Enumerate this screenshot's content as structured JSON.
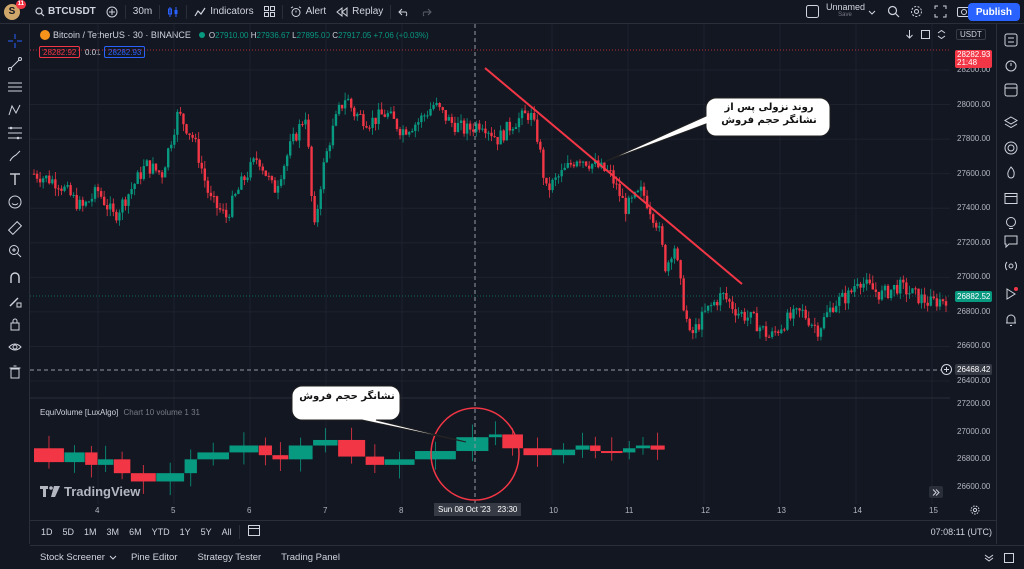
{
  "topbar": {
    "avatar_letter": "S",
    "avatar_badge": "11",
    "symbol": "BTCUSDT",
    "interval": "30m",
    "indicators_label": "Indicators",
    "alert_label": "Alert",
    "replay_label": "Replay",
    "layout_name": "Unnamed",
    "layout_status": "Save",
    "publish_label": "Publish"
  },
  "legend": {
    "title": "Bitcoin / TetherUS · 30 · BINANCE",
    "o_label": "O",
    "o_value": "27910.00",
    "h_label": "H",
    "h_value": "27936.67",
    "l_label": "L",
    "l_value": "27895.00",
    "c_label": "C",
    "c_value": "27917.05 +7.06 (+0.03%)",
    "sell_price": "28282.92",
    "spread": "0.01",
    "buy_price": "28282.93",
    "currency": "USDT"
  },
  "indicator": {
    "name": "EquiVolume [LuxAlgo]",
    "params": "Chart 10 volume 1 31"
  },
  "price_axis": {
    "labels": [
      "28200.00",
      "28000.00",
      "27800.00",
      "27600.00",
      "27400.00",
      "27200.00",
      "27000.00",
      "26800.00",
      "26600.00",
      "26400.00"
    ],
    "current_price": "28282.93",
    "countdown": "21:48",
    "last_price": "26882.52",
    "crosshair_price": "26468.42"
  },
  "sub_axis": {
    "labels": [
      "27200.00",
      "27000.00",
      "26800.00",
      "26600.00"
    ]
  },
  "time_axis": {
    "labels": [
      "4",
      "5",
      "6",
      "7",
      "8",
      "10",
      "11",
      "12",
      "13",
      "14",
      "15"
    ],
    "crosshair_label": "Sun 08 Oct '23   23:30"
  },
  "bottom": {
    "timeframes": [
      "1D",
      "5D",
      "1M",
      "3M",
      "6M",
      "YTD",
      "1Y",
      "5Y",
      "All"
    ],
    "clock": "07:08:11 (UTC)"
  },
  "panels": {
    "tabs": [
      "Stock Screener",
      "Pine Editor",
      "Strategy Tester",
      "Trading Panel"
    ]
  },
  "watermark": "TradingView",
  "annotations": {
    "callout_top": "روند نزولی پس از نشانگر حجم فروش",
    "callout_bottom": "نشانگر حجم فروش"
  },
  "colors": {
    "up": "#089981",
    "down": "#f23645",
    "accent": "#2962ff",
    "bg": "#131722"
  },
  "chart_data": {
    "type": "candlestick",
    "symbol": "BTCUSDT",
    "ylim": [
      26400,
      28260
    ],
    "x_ticks": [
      "4",
      "5",
      "6",
      "7",
      "8",
      "10",
      "11",
      "12",
      "13",
      "14",
      "15"
    ],
    "trend_path": [
      [
        0,
        27600
      ],
      [
        0.03,
        27550
      ],
      [
        0.06,
        27400
      ],
      [
        0.08,
        27500
      ],
      [
        0.1,
        27350
      ],
      [
        0.12,
        27500
      ],
      [
        0.14,
        27650
      ],
      [
        0.16,
        27600
      ],
      [
        0.18,
        27950
      ],
      [
        0.2,
        27800
      ],
      [
        0.22,
        27450
      ],
      [
        0.24,
        27350
      ],
      [
        0.26,
        27550
      ],
      [
        0.28,
        27700
      ],
      [
        0.3,
        27500
      ],
      [
        0.32,
        27750
      ],
      [
        0.34,
        27950
      ],
      [
        0.35,
        27250
      ],
      [
        0.36,
        27600
      ],
      [
        0.37,
        27800
      ],
      [
        0.38,
        27950
      ],
      [
        0.39,
        28050
      ],
      [
        0.4,
        27950
      ],
      [
        0.42,
        27900
      ],
      [
        0.44,
        27950
      ],
      [
        0.46,
        27850
      ],
      [
        0.48,
        27900
      ],
      [
        0.5,
        28000
      ],
      [
        0.52,
        27900
      ],
      [
        0.54,
        27850
      ],
      [
        0.56,
        27900
      ],
      [
        0.58,
        27800
      ],
      [
        0.6,
        27900
      ],
      [
        0.62,
        27950
      ],
      [
        0.63,
        27800
      ],
      [
        0.64,
        27500
      ],
      [
        0.66,
        27600
      ],
      [
        0.68,
        27700
      ],
      [
        0.7,
        27650
      ],
      [
        0.72,
        27600
      ],
      [
        0.74,
        27400
      ],
      [
        0.76,
        27500
      ],
      [
        0.78,
        27300
      ],
      [
        0.79,
        27050
      ],
      [
        0.8,
        27200
      ],
      [
        0.81,
        26900
      ],
      [
        0.82,
        26650
      ],
      [
        0.84,
        26800
      ],
      [
        0.86,
        26900
      ],
      [
        0.88,
        26800
      ],
      [
        0.9,
        26750
      ],
      [
        0.92,
        26650
      ],
      [
        0.94,
        26750
      ],
      [
        0.96,
        26800
      ],
      [
        0.98,
        26700
      ],
      [
        1.0,
        26850
      ],
      [
        1.02,
        26900
      ],
      [
        1.03,
        27000
      ],
      [
        1.04,
        26950
      ],
      [
        1.06,
        26900
      ],
      [
        1.08,
        26950
      ],
      [
        1.1,
        26900
      ],
      [
        1.12,
        26850
      ],
      [
        1.14,
        26880
      ]
    ],
    "equivolume_path": [
      [
        0,
        26880
      ],
      [
        0.05,
        26780
      ],
      [
        0.1,
        26850
      ],
      [
        0.15,
        26760
      ],
      [
        0.2,
        26800
      ],
      [
        0.25,
        26700
      ],
      [
        0.3,
        26640
      ],
      [
        0.35,
        26700
      ],
      [
        0.4,
        26800
      ],
      [
        0.45,
        26850
      ],
      [
        0.48,
        26900
      ],
      [
        0.5,
        26830
      ],
      [
        0.52,
        26800
      ],
      [
        0.55,
        26900
      ],
      [
        0.58,
        26940
      ],
      [
        0.6,
        26820
      ],
      [
        0.62,
        26760
      ],
      [
        0.65,
        26800
      ],
      [
        0.68,
        26860
      ],
      [
        0.7,
        26960
      ],
      [
        0.72,
        26980
      ],
      [
        0.75,
        26880
      ],
      [
        0.78,
        26830
      ],
      [
        0.8,
        26870
      ],
      [
        0.82,
        26900
      ],
      [
        0.85,
        26860
      ],
      [
        0.88,
        26850
      ],
      [
        0.92,
        26880
      ],
      [
        0.96,
        26900
      ],
      [
        1.0,
        26870
      ]
    ]
  }
}
